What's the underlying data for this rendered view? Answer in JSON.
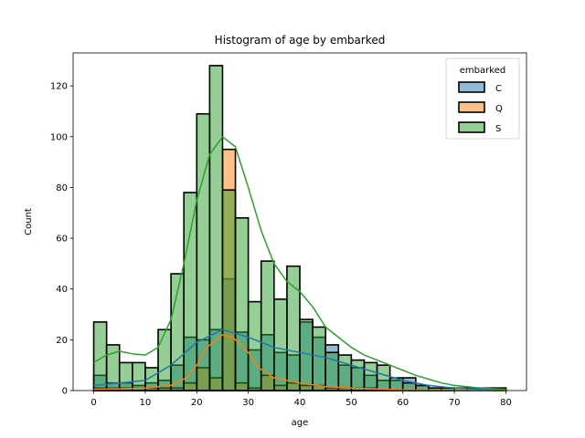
{
  "chart_data": {
    "type": "histogram",
    "title": "Histogram of age by embarked",
    "xlabel": "age",
    "ylabel": "Count",
    "xlim": [
      -4,
      84
    ],
    "ylim": [
      0,
      133
    ],
    "xticks": [
      0,
      10,
      20,
      30,
      40,
      50,
      60,
      70,
      80
    ],
    "yticks": [
      0,
      20,
      40,
      60,
      80,
      100,
      120
    ],
    "legend": {
      "title": "embarked",
      "placement": "top-right"
    },
    "bin_edges": [
      0,
      2.5,
      5,
      7.5,
      10,
      12.5,
      15,
      17.5,
      20,
      22.5,
      25,
      27.5,
      30,
      32.5,
      35,
      37.5,
      40,
      42.5,
      45,
      47.5,
      50,
      52.5,
      55,
      57.5,
      60,
      62.5,
      65,
      67.5,
      70,
      72.5,
      75,
      77.5,
      80
    ],
    "series": [
      {
        "name": "C",
        "color": "#1f77b4",
        "values": [
          6,
          3,
          3,
          2,
          3,
          4,
          10,
          21,
          20,
          24,
          44,
          23,
          16,
          22,
          15,
          14,
          27,
          21,
          18,
          10,
          9,
          6,
          4,
          4,
          5,
          2,
          1,
          1,
          0,
          0,
          0,
          1
        ],
        "kde": [
          [
            0,
            2
          ],
          [
            5,
            3
          ],
          [
            10,
            4
          ],
          [
            15,
            10
          ],
          [
            20,
            19
          ],
          [
            25,
            24
          ],
          [
            30,
            21
          ],
          [
            35,
            17
          ],
          [
            40,
            15
          ],
          [
            45,
            13
          ],
          [
            50,
            10
          ],
          [
            55,
            7
          ],
          [
            60,
            4
          ],
          [
            65,
            2
          ],
          [
            70,
            1
          ],
          [
            75,
            0.5
          ],
          [
            80,
            0.2
          ]
        ]
      },
      {
        "name": "Q",
        "color": "#ff7f0e",
        "values": [
          1,
          1,
          1,
          1,
          1,
          1,
          1,
          3,
          9,
          5,
          95,
          3,
          1,
          6,
          2,
          3,
          2,
          2,
          1,
          1,
          1,
          1,
          0,
          0,
          0,
          0,
          0,
          0,
          0,
          0,
          0,
          0
        ],
        "kde": [
          [
            0,
            0.5
          ],
          [
            5,
            0.7
          ],
          [
            10,
            1
          ],
          [
            15,
            2
          ],
          [
            18,
            5
          ],
          [
            20,
            10
          ],
          [
            22,
            17
          ],
          [
            25,
            22
          ],
          [
            27,
            21
          ],
          [
            30,
            15
          ],
          [
            32,
            9
          ],
          [
            35,
            5
          ],
          [
            40,
            3
          ],
          [
            45,
            1.5
          ],
          [
            50,
            1
          ],
          [
            60,
            0.3
          ],
          [
            80,
            0
          ]
        ]
      },
      {
        "name": "S",
        "color": "#2ca02c",
        "values": [
          27,
          18,
          11,
          11,
          9,
          24,
          46,
          78,
          109,
          128,
          79,
          68,
          35,
          51,
          36,
          49,
          28,
          25,
          15,
          14,
          12,
          11,
          10,
          5,
          3,
          2,
          1,
          1,
          1,
          1,
          1,
          1
        ],
        "kde": [
          [
            0,
            11
          ],
          [
            2.5,
            14
          ],
          [
            5,
            15.5
          ],
          [
            7.5,
            14.5
          ],
          [
            10,
            14
          ],
          [
            12.5,
            17
          ],
          [
            15,
            28
          ],
          [
            17.5,
            50
          ],
          [
            20,
            75
          ],
          [
            22.5,
            93
          ],
          [
            25,
            100
          ],
          [
            27.5,
            96
          ],
          [
            30,
            80
          ],
          [
            32.5,
            63
          ],
          [
            35,
            50
          ],
          [
            37.5,
            43
          ],
          [
            40,
            39
          ],
          [
            42.5,
            33
          ],
          [
            45,
            25
          ],
          [
            47.5,
            21
          ],
          [
            50,
            17
          ],
          [
            52.5,
            14
          ],
          [
            55,
            12
          ],
          [
            57.5,
            10
          ],
          [
            60,
            8
          ],
          [
            62.5,
            6
          ],
          [
            65,
            4.5
          ],
          [
            67.5,
            3
          ],
          [
            70,
            2
          ],
          [
            75,
            1
          ],
          [
            80,
            0.5
          ]
        ]
      }
    ]
  }
}
